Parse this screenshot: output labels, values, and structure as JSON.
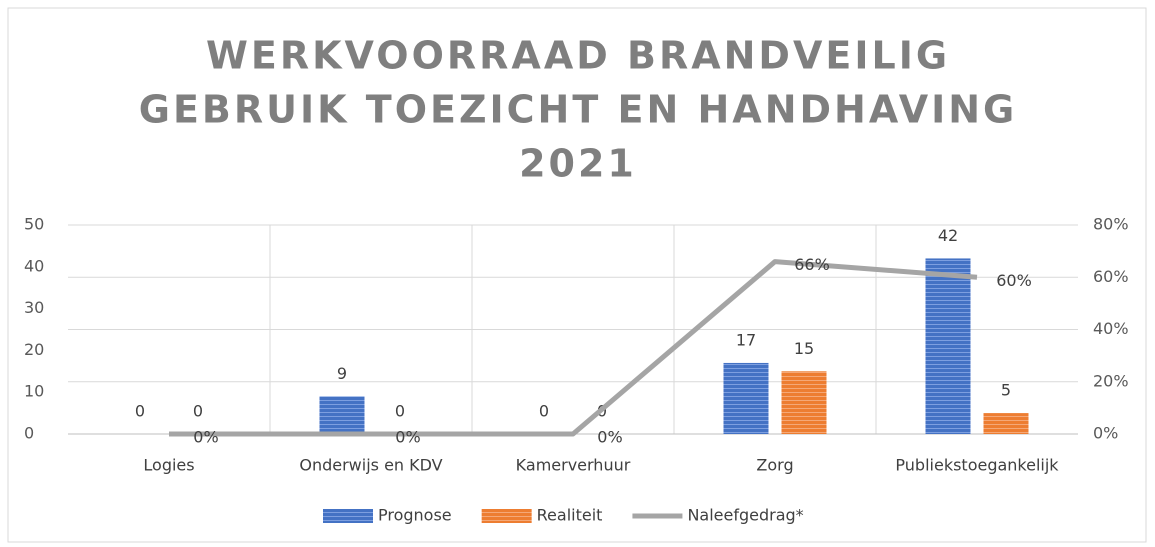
{
  "chart_data": {
    "type": "bar",
    "title": [
      "WERKVOORRAAD BRANDVEILIG",
      "GEBRUIK TOEZICHT EN HANDHAVING",
      "2021"
    ],
    "categories": [
      "Logies",
      "Onderwijs en KDV",
      "Kamerverhuur",
      "Zorg",
      "Publiekstoegankelijk"
    ],
    "series": [
      {
        "name": "Prognose",
        "color": "#4472c4",
        "type": "bar",
        "values": [
          0,
          9,
          0,
          17,
          42
        ]
      },
      {
        "name": "Realiteit",
        "color": "#ed7d31",
        "type": "bar",
        "values": [
          0,
          0,
          0,
          15,
          5
        ]
      },
      {
        "name": "Naleefgedrag*",
        "color": "#a5a5a5",
        "type": "line",
        "axis": "y2",
        "values": [
          0,
          0,
          0,
          66,
          60
        ],
        "value_labels": [
          "0%",
          "0%",
          "0%",
          "66%",
          "60%"
        ]
      }
    ],
    "ylim": [
      0,
      50
    ],
    "yticks": [
      0,
      10,
      20,
      30,
      40,
      50
    ],
    "y2lim": [
      0,
      80
    ],
    "y2ticks": [
      {
        "value": 0,
        "label": "0%"
      },
      {
        "value": 20,
        "label": "20%"
      },
      {
        "value": 40,
        "label": "40%"
      },
      {
        "value": 60,
        "label": "60%"
      },
      {
        "value": 80,
        "label": "80%"
      }
    ],
    "grid": true,
    "legend": "bottom"
  }
}
